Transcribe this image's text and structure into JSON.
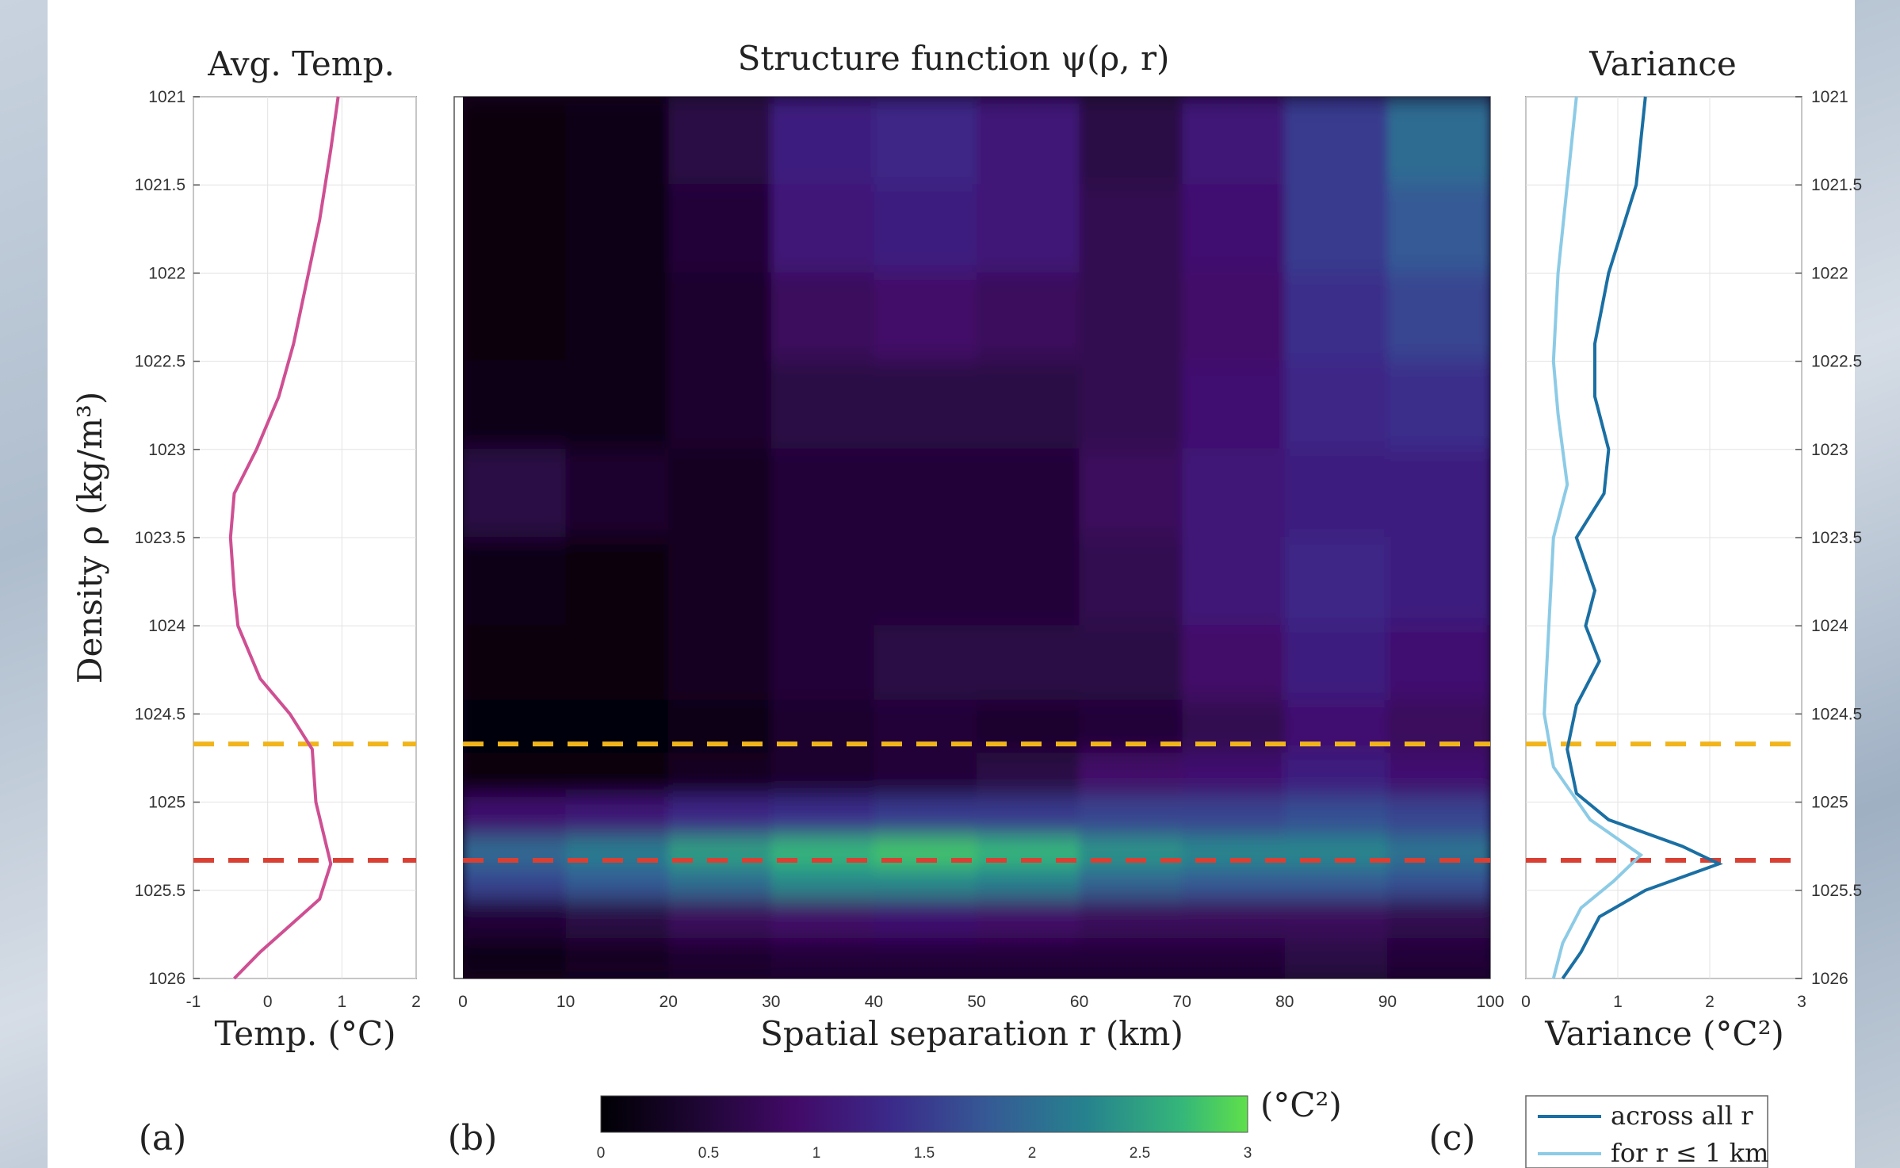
{
  "colors": {
    "avg_temp": "#cf4f93",
    "variance_all": "#1a6fa3",
    "variance_short": "#8ccbe6",
    "line_yellow": "#f1b51c",
    "line_red": "#d94034"
  },
  "reference_lines": [
    {
      "name": "yellow",
      "density": 1024.67
    },
    {
      "name": "red",
      "density": 1025.33
    }
  ],
  "chart_data": [
    {
      "type": "line",
      "panel_label": "(a)",
      "title": "Avg. Temp.",
      "xlabel": "Temp. (°C)",
      "ylabel": "Density ρ (kg/m³)",
      "xlim": [
        -1,
        2
      ],
      "ylim": [
        1021,
        1026
      ],
      "y_reversed": true,
      "grid": true,
      "xticks": [
        "-1",
        "0",
        "1",
        "2"
      ],
      "yticks": [
        "1021",
        "1021.5",
        "1022",
        "1022.5",
        "1023",
        "1023.5",
        "1024",
        "1024.5",
        "1025",
        "1025.5",
        "1026"
      ],
      "series": [
        {
          "points": [
            [
              0.95,
              1021.0
            ],
            [
              0.85,
              1021.3
            ],
            [
              0.7,
              1021.7
            ],
            [
              0.55,
              1022.0
            ],
            [
              0.35,
              1022.4
            ],
            [
              0.15,
              1022.7
            ],
            [
              -0.15,
              1023.0
            ],
            [
              -0.45,
              1023.25
            ],
            [
              -0.5,
              1023.5
            ],
            [
              -0.45,
              1023.8
            ],
            [
              -0.4,
              1024.0
            ],
            [
              -0.1,
              1024.3
            ],
            [
              0.3,
              1024.5
            ],
            [
              0.6,
              1024.7
            ],
            [
              0.65,
              1025.0
            ],
            [
              0.85,
              1025.35
            ],
            [
              0.7,
              1025.55
            ],
            [
              0.3,
              1025.7
            ],
            [
              -0.1,
              1025.85
            ],
            [
              -0.45,
              1026.0
            ]
          ]
        }
      ]
    },
    {
      "type": "heatmap",
      "panel_label": "(b)",
      "title": "Structure function ψ(ρ, r)",
      "xlabel": "Spatial separation r (km)",
      "xlim": [
        0,
        100
      ],
      "ylim": [
        1021,
        1026
      ],
      "y_reversed": true,
      "xticks": [
        "0",
        "10",
        "20",
        "30",
        "40",
        "50",
        "60",
        "70",
        "80",
        "90",
        "100"
      ],
      "colorbar": {
        "unit": "(°C²)",
        "range": [
          0,
          3
        ],
        "ticks": [
          "0",
          "0.5",
          "1",
          "1.5",
          "2",
          "2.5",
          "3"
        ],
        "colormap": "viridis-magenta"
      },
      "column_centers_km": [
        5,
        15,
        25,
        35,
        45,
        55,
        65,
        75,
        85,
        95
      ],
      "row_densities": [
        1021.25,
        1021.75,
        1022.25,
        1022.75,
        1023.25,
        1023.75,
        1024.25,
        1024.6,
        1024.85,
        1025.1,
        1025.3,
        1025.45,
        1025.65,
        1025.9
      ],
      "values": [
        [
          0.1,
          0.2,
          0.6,
          1.2,
          1.3,
          1.1,
          0.6,
          1.1,
          1.5,
          2.0
        ],
        [
          0.1,
          0.2,
          0.5,
          1.1,
          1.2,
          1.1,
          0.7,
          1.0,
          1.5,
          1.8
        ],
        [
          0.1,
          0.2,
          0.4,
          0.8,
          0.9,
          0.8,
          0.7,
          0.9,
          1.4,
          1.6
        ],
        [
          0.15,
          0.2,
          0.4,
          0.6,
          0.6,
          0.6,
          0.7,
          1.0,
          1.3,
          1.4
        ],
        [
          0.6,
          0.4,
          0.3,
          0.5,
          0.5,
          0.5,
          0.8,
          1.1,
          1.2,
          1.2
        ],
        [
          0.15,
          0.1,
          0.3,
          0.5,
          0.5,
          0.5,
          0.7,
          1.1,
          1.3,
          1.2
        ],
        [
          0.1,
          0.1,
          0.3,
          0.5,
          0.6,
          0.6,
          0.6,
          0.9,
          1.2,
          1.0
        ],
        [
          0.05,
          0.05,
          0.2,
          0.4,
          0.5,
          0.4,
          0.5,
          0.7,
          1.0,
          0.8
        ],
        [
          0.1,
          0.1,
          0.3,
          0.4,
          0.5,
          0.6,
          0.9,
          1.0,
          1.2,
          1.0
        ],
        [
          1.0,
          1.1,
          1.3,
          1.4,
          1.5,
          1.5,
          1.6,
          1.6,
          1.7,
          1.6
        ],
        [
          2.0,
          2.2,
          2.5,
          2.7,
          2.8,
          2.7,
          2.4,
          2.3,
          2.3,
          2.1
        ],
        [
          1.6,
          1.8,
          2.0,
          2.3,
          2.3,
          2.2,
          1.9,
          1.8,
          1.8,
          1.7
        ],
        [
          0.5,
          0.6,
          0.8,
          0.9,
          1.0,
          0.9,
          0.8,
          0.8,
          0.8,
          0.7
        ],
        [
          0.2,
          0.3,
          0.4,
          0.5,
          0.5,
          0.5,
          0.5,
          0.5,
          0.6,
          0.5
        ]
      ]
    },
    {
      "type": "line",
      "panel_label": "(c)",
      "title": "Variance",
      "xlabel": "Variance (°C²)",
      "xlim": [
        0,
        3
      ],
      "ylim": [
        1021,
        1026
      ],
      "y_reversed": true,
      "grid": true,
      "xticks": [
        "0",
        "1",
        "2",
        "3"
      ],
      "yticks": [
        "1021",
        "1021.5",
        "1022",
        "1022.5",
        "1023",
        "1023.5",
        "1024",
        "1024.5",
        "1025",
        "1025.5",
        "1026"
      ],
      "legend": {
        "position": "bottom-right",
        "entries": [
          "across all r",
          "for r ≤ 1 km"
        ]
      },
      "series": [
        {
          "name": "across all r",
          "points": [
            [
              1.3,
              1021.0
            ],
            [
              1.2,
              1021.5
            ],
            [
              0.9,
              1022.0
            ],
            [
              0.75,
              1022.4
            ],
            [
              0.75,
              1022.7
            ],
            [
              0.9,
              1023.0
            ],
            [
              0.85,
              1023.25
            ],
            [
              0.55,
              1023.5
            ],
            [
              0.75,
              1023.8
            ],
            [
              0.65,
              1024.0
            ],
            [
              0.8,
              1024.2
            ],
            [
              0.55,
              1024.45
            ],
            [
              0.45,
              1024.7
            ],
            [
              0.55,
              1024.95
            ],
            [
              0.9,
              1025.1
            ],
            [
              1.7,
              1025.25
            ],
            [
              2.1,
              1025.35
            ],
            [
              1.3,
              1025.5
            ],
            [
              0.8,
              1025.65
            ],
            [
              0.6,
              1025.85
            ],
            [
              0.4,
              1026.0
            ]
          ]
        },
        {
          "name": "for r ≤ 1 km",
          "points": [
            [
              0.55,
              1021.0
            ],
            [
              0.45,
              1021.5
            ],
            [
              0.35,
              1022.0
            ],
            [
              0.3,
              1022.5
            ],
            [
              0.35,
              1022.8
            ],
            [
              0.45,
              1023.2
            ],
            [
              0.3,
              1023.5
            ],
            [
              0.25,
              1024.0
            ],
            [
              0.2,
              1024.5
            ],
            [
              0.3,
              1024.8
            ],
            [
              0.7,
              1025.1
            ],
            [
              1.25,
              1025.3
            ],
            [
              0.95,
              1025.45
            ],
            [
              0.6,
              1025.6
            ],
            [
              0.4,
              1025.8
            ],
            [
              0.3,
              1026.0
            ]
          ]
        }
      ]
    }
  ]
}
